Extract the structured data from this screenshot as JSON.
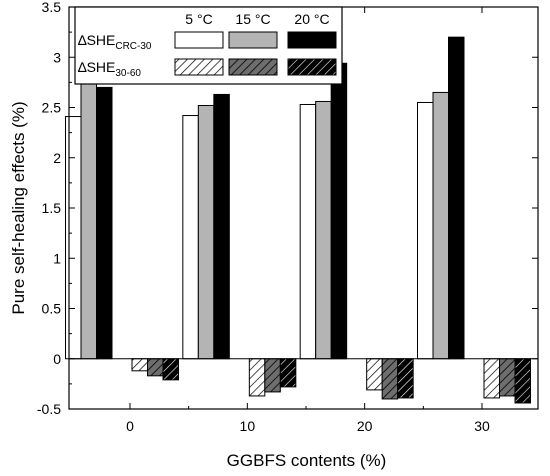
{
  "chart_data": {
    "type": "bar",
    "xlabel": "GGBFS contents (%)",
    "ylabel": "Pure self-healing effects (%)",
    "ylim": [
      -0.5,
      3.5
    ],
    "yticks": [
      "-0.5",
      "0",
      "0.5",
      "1",
      "1.5",
      "2",
      "2.5",
      "3",
      "3.5"
    ],
    "categories": [
      "0",
      "10",
      "20",
      "30"
    ],
    "legend_position": "top-left",
    "legend_columns": [
      "5 °C",
      "15 °C",
      "20 °C"
    ],
    "legend_rows": [
      {
        "prefix": "∆SHE",
        "sub": "CRC-30"
      },
      {
        "prefix": "∆SHE",
        "sub": "30-60"
      }
    ],
    "series": [
      {
        "name": "∆SHE CRC-30 5 °C",
        "group": "CRC-30",
        "temperature": "5 °C",
        "fill": "white",
        "values": [
          2.41,
          2.42,
          2.53,
          2.55
        ]
      },
      {
        "name": "∆SHE CRC-30 15 °C",
        "group": "CRC-30",
        "temperature": "15 °C",
        "fill": "gray",
        "values": [
          2.75,
          2.52,
          2.56,
          2.65
        ]
      },
      {
        "name": "∆SHE CRC-30 20 °C",
        "group": "CRC-30",
        "temperature": "20 °C",
        "fill": "black",
        "values": [
          2.7,
          2.63,
          2.94,
          3.2
        ]
      },
      {
        "name": "∆SHE 30-60 5 °C",
        "group": "30-60",
        "temperature": "5 °C",
        "fill": "white-hatched",
        "values": [
          -0.12,
          -0.37,
          -0.31,
          -0.39
        ]
      },
      {
        "name": "∆SHE 30-60 15 °C",
        "group": "30-60",
        "temperature": "15 °C",
        "fill": "gray-hatched",
        "values": [
          -0.17,
          -0.33,
          -0.4,
          -0.37
        ]
      },
      {
        "name": "∆SHE 30-60 20 °C",
        "group": "30-60",
        "temperature": "20 °C",
        "fill": "black-hatched",
        "values": [
          -0.21,
          -0.28,
          -0.39,
          -0.44
        ]
      }
    ],
    "colors": {
      "white": "#ffffff",
      "gray": "#b4b4b4",
      "dark_gray": "#6e6e6e",
      "black": "#000000"
    }
  }
}
